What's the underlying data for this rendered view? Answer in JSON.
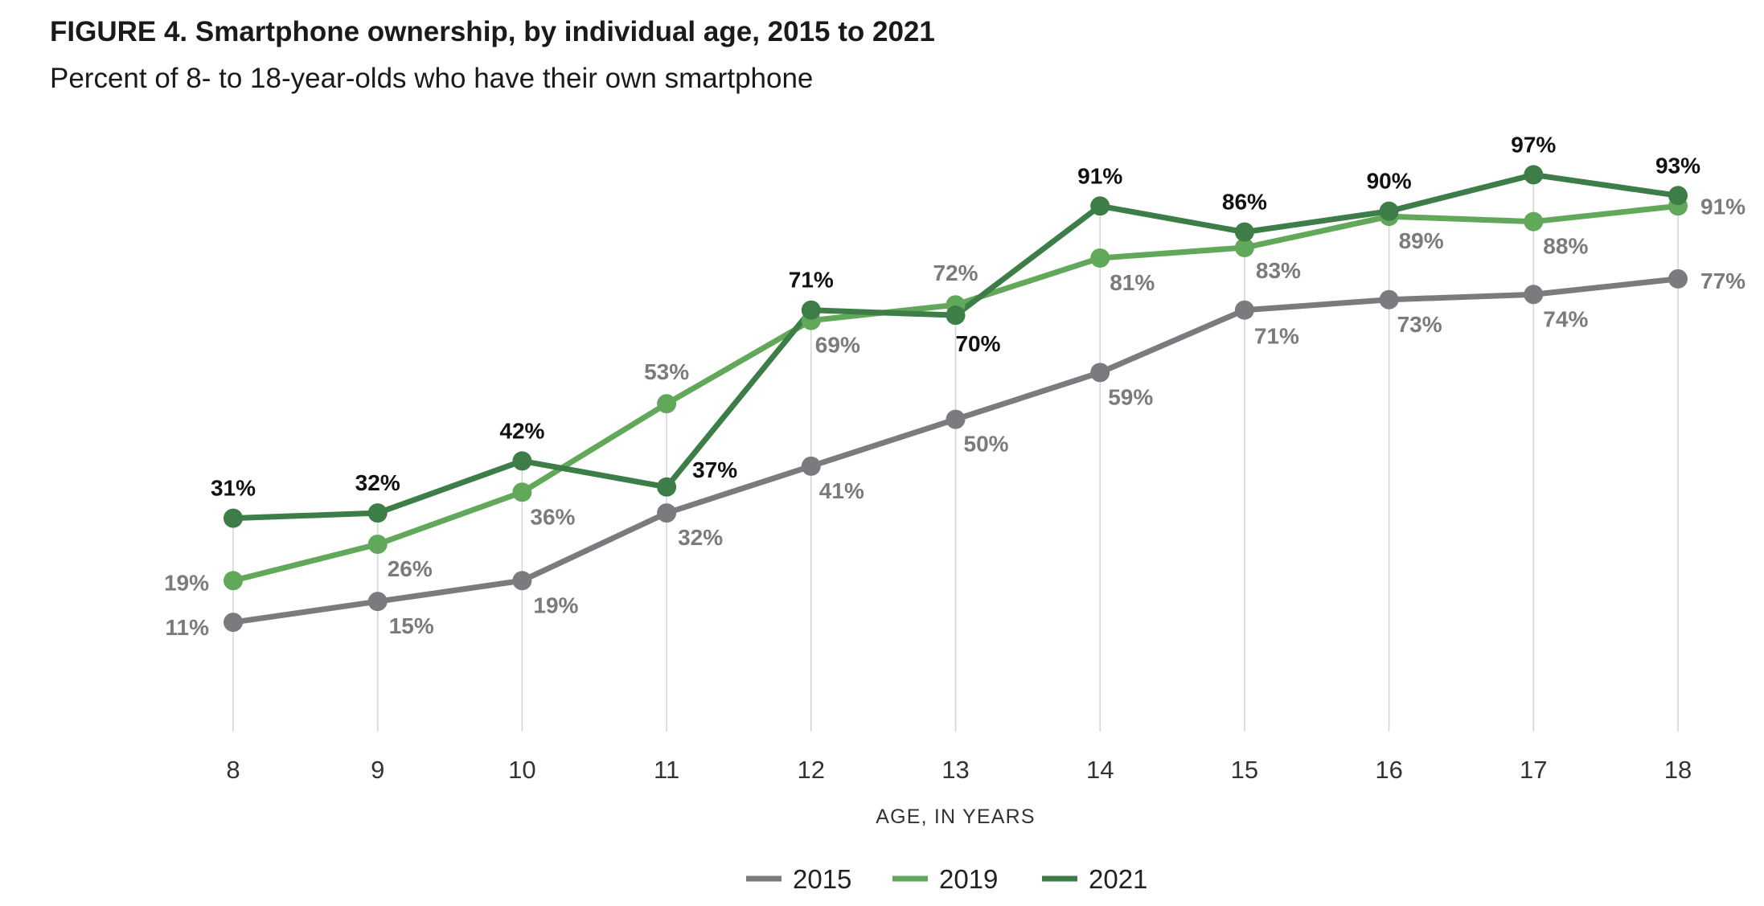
{
  "title": "FIGURE 4. Smartphone ownership, by individual age, 2015 to 2021",
  "subtitle": "Percent of 8- to 18-year-olds who have their own smartphone",
  "chart_data": {
    "type": "line",
    "title": "FIGURE 4. Smartphone ownership, by individual age, 2015 to 2021",
    "subtitle": "Percent of 8- to 18-year-olds who have their own smartphone",
    "xlabel": "AGE, IN YEARS",
    "ylabel": "",
    "x": [
      8,
      9,
      10,
      11,
      12,
      13,
      14,
      15,
      16,
      17,
      18
    ],
    "ylim": [
      -10,
      100
    ],
    "grid": "vertical drop lines at each age",
    "legend": "bottom-center",
    "series": [
      {
        "name": "2015",
        "color": "#7b7b7f",
        "label_color": "#7b7b7f",
        "values": [
          11,
          15,
          19,
          32,
          41,
          50,
          59,
          71,
          73,
          74,
          77
        ],
        "labels": [
          "11%",
          "15%",
          "19%",
          "32%",
          "41%",
          "50%",
          "59%",
          "71%",
          "73%",
          "74%",
          "77%"
        ]
      },
      {
        "name": "2019",
        "color": "#62a85a",
        "label_color": "#7b7b7f",
        "values": [
          19,
          26,
          36,
          53,
          69,
          72,
          81,
          83,
          89,
          88,
          91
        ],
        "labels": [
          "19%",
          "26%",
          "36%",
          "53%",
          "69%",
          "72%",
          "81%",
          "83%",
          "89%",
          "88%",
          "91%"
        ]
      },
      {
        "name": "2021",
        "color": "#3d7d47",
        "label_color": "#111111",
        "values": [
          31,
          32,
          42,
          37,
          71,
          70,
          91,
          86,
          90,
          97,
          93
        ],
        "labels": [
          "31%",
          "32%",
          "42%",
          "37%",
          "71%",
          "70%",
          "91%",
          "86%",
          "90%",
          "97%",
          "93%"
        ]
      }
    ]
  }
}
